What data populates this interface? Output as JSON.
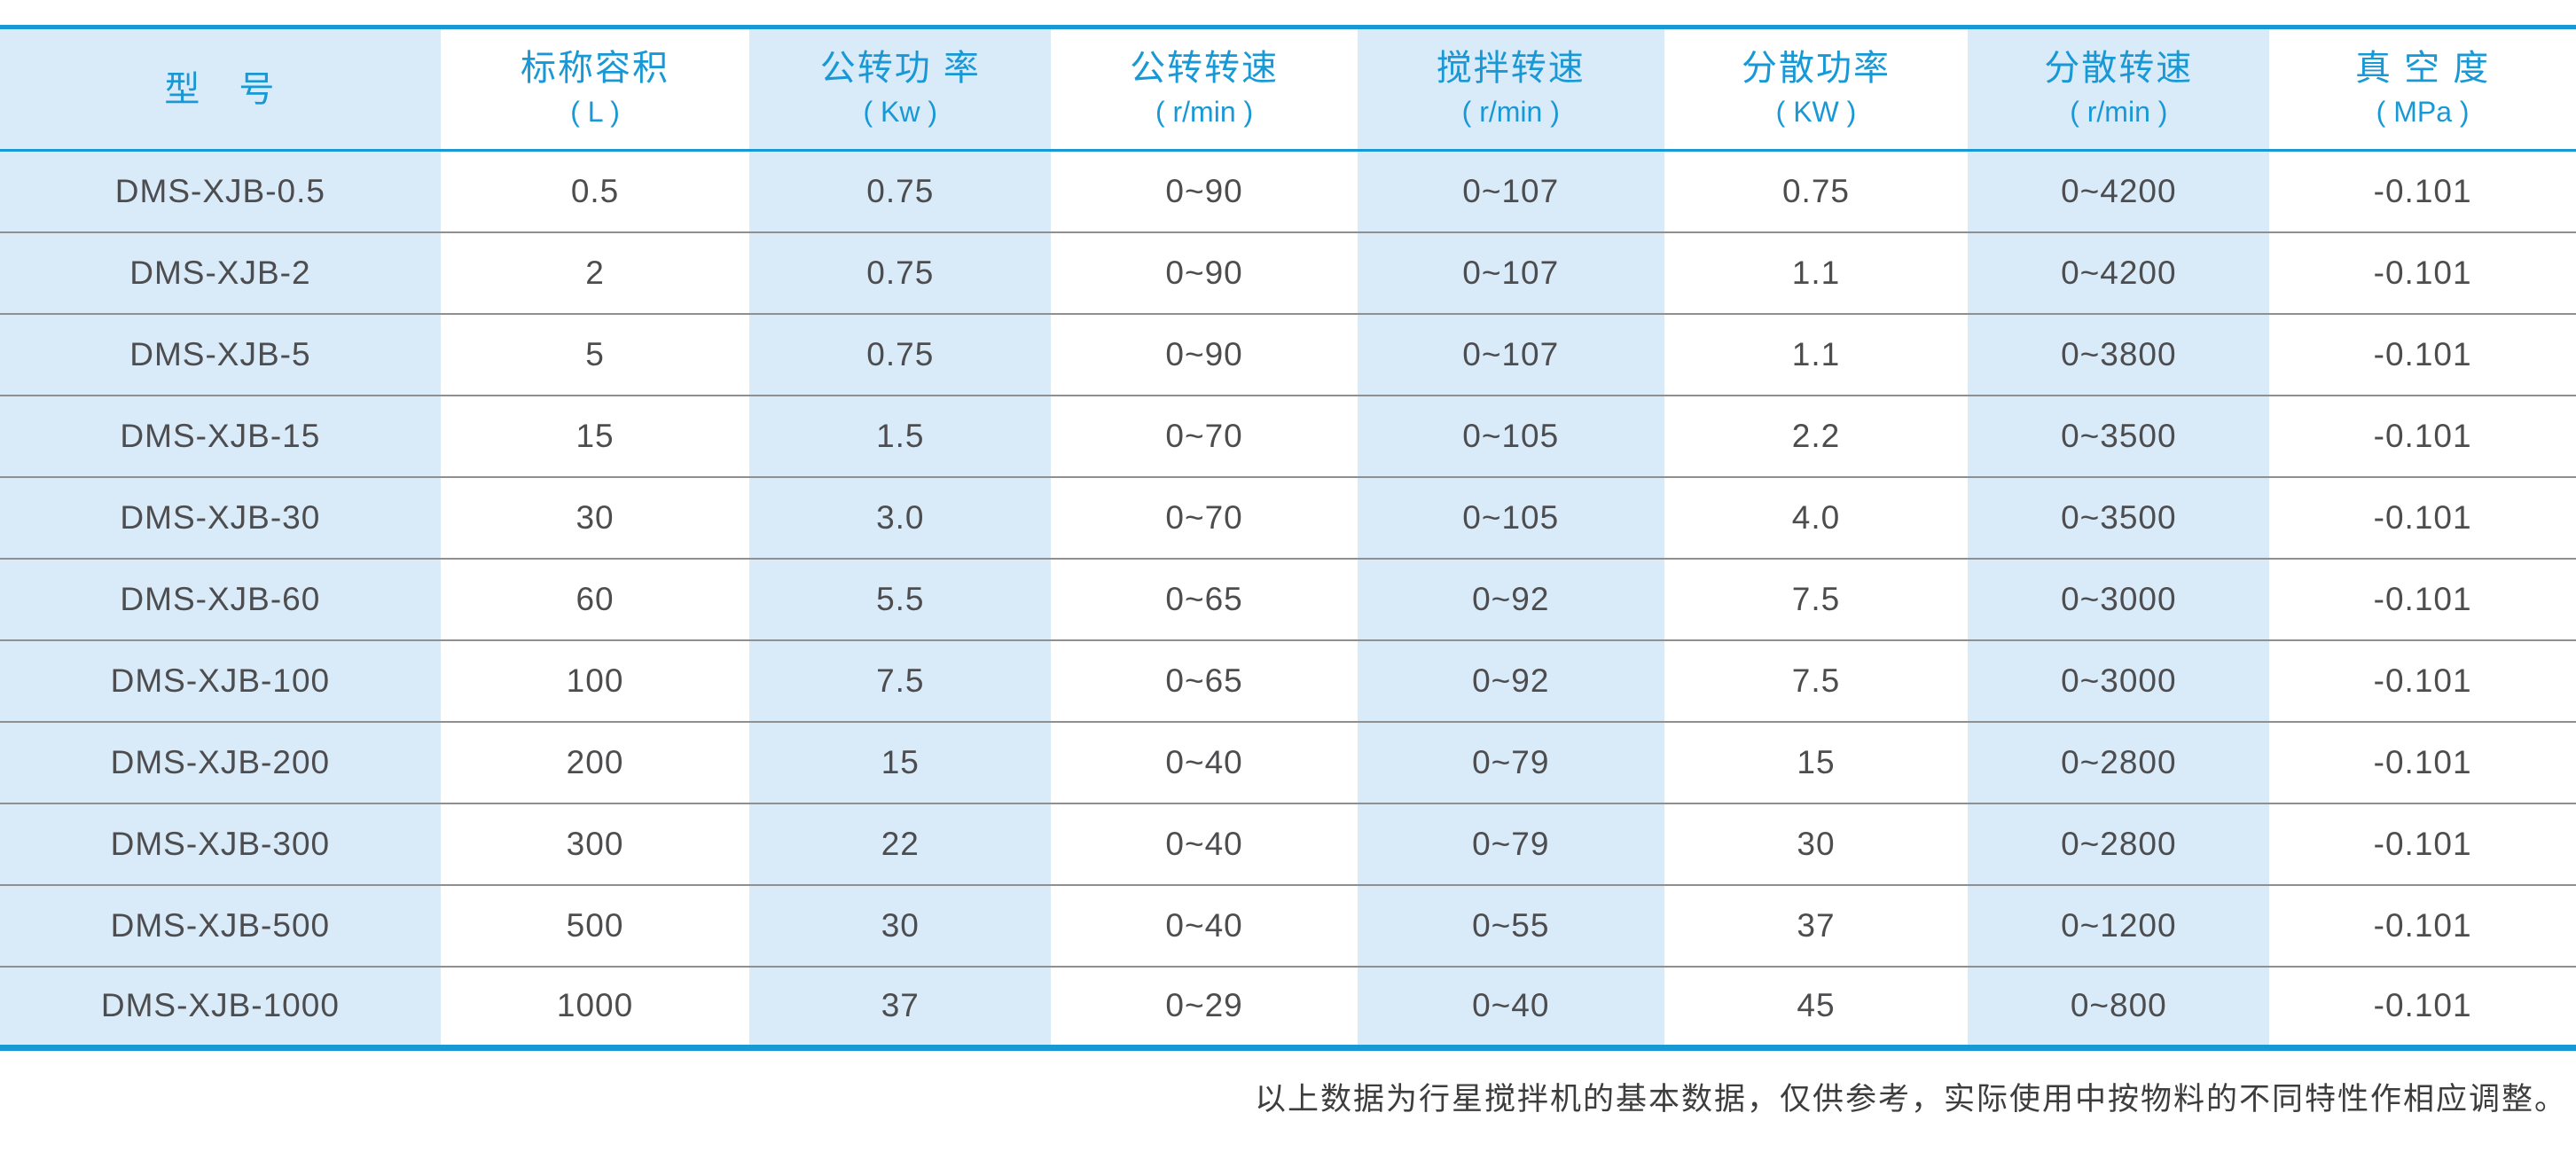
{
  "colors": {
    "accent": "#1899d6",
    "stripe": "#d9eaf8",
    "body_text": "#4d4d4f",
    "row_line": "#8f8f8f",
    "note_text": "#3d3d3d"
  },
  "table": {
    "columns": [
      {
        "label": "型　号",
        "unit": ""
      },
      {
        "label": "标称容积",
        "unit": "( L )"
      },
      {
        "label": "公转功 率",
        "unit": "( Kw )"
      },
      {
        "label": "公转转速",
        "unit": "( r/min )"
      },
      {
        "label": "搅拌转速",
        "unit": "( r/min )"
      },
      {
        "label": "分散功率",
        "unit": "( KW )"
      },
      {
        "label": "分散转速",
        "unit": "( r/min )"
      },
      {
        "label": "真 空 度",
        "unit": "( MPa )"
      }
    ],
    "striped_column_indexes": [
      0,
      2,
      4,
      6
    ],
    "rows": [
      [
        "DMS-XJB-0.5",
        "0.5",
        "0.75",
        "0~90",
        "0~107",
        "0.75",
        "0~4200",
        "-0.101"
      ],
      [
        "DMS-XJB-2",
        "2",
        "0.75",
        "0~90",
        "0~107",
        "1.1",
        "0~4200",
        "-0.101"
      ],
      [
        "DMS-XJB-5",
        "5",
        "0.75",
        "0~90",
        "0~107",
        "1.1",
        "0~3800",
        "-0.101"
      ],
      [
        "DMS-XJB-15",
        "15",
        "1.5",
        "0~70",
        "0~105",
        "2.2",
        "0~3500",
        "-0.101"
      ],
      [
        "DMS-XJB-30",
        "30",
        "3.0",
        "0~70",
        "0~105",
        "4.0",
        "0~3500",
        "-0.101"
      ],
      [
        "DMS-XJB-60",
        "60",
        "5.5",
        "0~65",
        "0~92",
        "7.5",
        "0~3000",
        "-0.101"
      ],
      [
        "DMS-XJB-100",
        "100",
        "7.5",
        "0~65",
        "0~92",
        "7.5",
        "0~3000",
        "-0.101"
      ],
      [
        "DMS-XJB-200",
        "200",
        "15",
        "0~40",
        "0~79",
        "15",
        "0~2800",
        "-0.101"
      ],
      [
        "DMS-XJB-300",
        "300",
        "22",
        "0~40",
        "0~79",
        "30",
        "0~2800",
        "-0.101"
      ],
      [
        "DMS-XJB-500",
        "500",
        "30",
        "0~40",
        "0~55",
        "37",
        "0~1200",
        "-0.101"
      ],
      [
        "DMS-XJB-1000",
        "1000",
        "37",
        "0~29",
        "0~40",
        "45",
        "0~800",
        "-0.101"
      ]
    ],
    "column_widths_pct": [
      17.1,
      12.0,
      11.7,
      11.9,
      11.9,
      11.8,
      11.7,
      11.9
    ]
  },
  "footnote": "以上数据为行星搅拌机的基本数据，仅供参考，实际使用中按物料的不同特性作相应调整。"
}
